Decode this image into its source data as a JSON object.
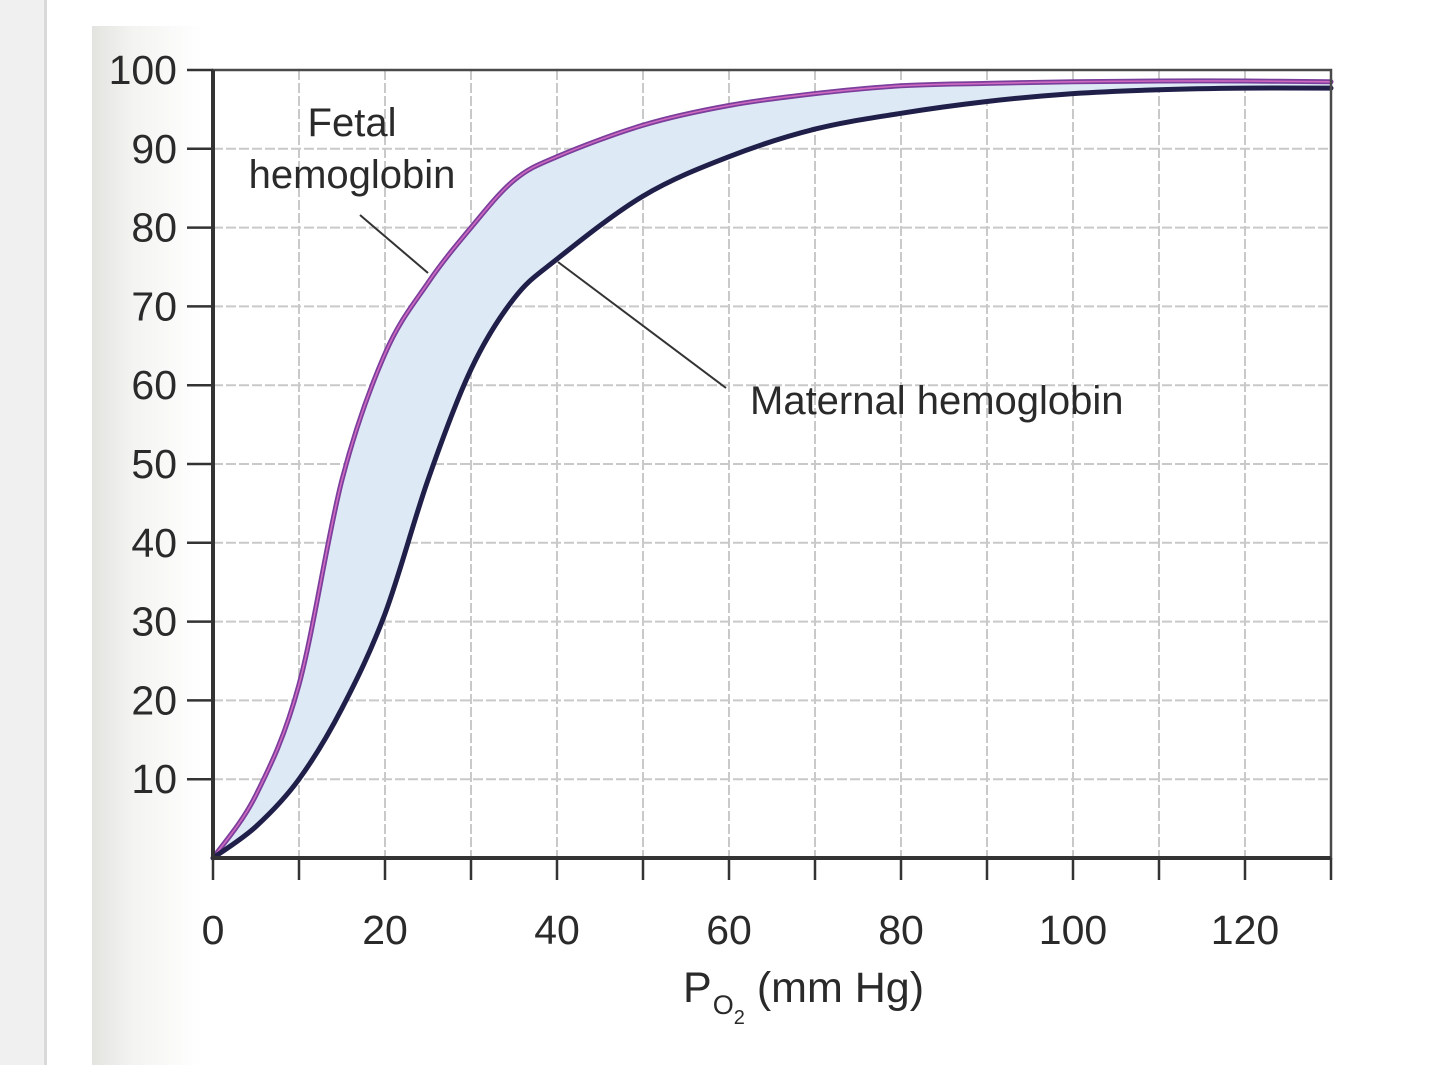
{
  "chart_data": {
    "type": "line",
    "xlabel": {
      "main": "P",
      "subscript": "O",
      "subsubscript": "2",
      "unit": "(mm Hg)"
    },
    "ylabel": "",
    "xlim": [
      0,
      130
    ],
    "ylim": [
      0,
      100
    ],
    "x_ticks": [
      0,
      20,
      40,
      60,
      80,
      100,
      120
    ],
    "x_minor_ticks": [
      10,
      30,
      50,
      70,
      90,
      110,
      130
    ],
    "y_ticks": [
      10,
      20,
      30,
      40,
      50,
      60,
      70,
      80,
      90,
      100
    ],
    "grid": true,
    "shaded_region": {
      "between": [
        "Fetal hemoglobin",
        "Maternal hemoglobin"
      ],
      "color": "#dde9f5"
    },
    "series": [
      {
        "name": "Fetal hemoglobin",
        "label_lines": [
          "Fetal",
          "hemoglobin"
        ],
        "color": "#7a3e9c",
        "x": [
          0,
          5,
          10,
          15,
          20,
          25,
          30,
          35,
          40,
          50,
          60,
          70,
          80,
          90,
          100,
          110,
          120,
          130
        ],
        "y": [
          0,
          8,
          22,
          48,
          64,
          73,
          80,
          86,
          89,
          93,
          95.5,
          97,
          98,
          98.3,
          98.5,
          98.6,
          98.6,
          98.5
        ]
      },
      {
        "name": "Maternal hemoglobin",
        "label_lines": [
          "Maternal hemoglobin"
        ],
        "color": "#1f1f4a",
        "x": [
          0,
          5,
          10,
          15,
          20,
          25,
          30,
          35,
          40,
          50,
          60,
          70,
          80,
          90,
          100,
          110,
          120,
          130
        ],
        "y": [
          0,
          4,
          10,
          19,
          31,
          48,
          62,
          71,
          76,
          84,
          89,
          92.5,
          94.5,
          96,
          97,
          97.5,
          97.7,
          97.7
        ]
      }
    ]
  }
}
